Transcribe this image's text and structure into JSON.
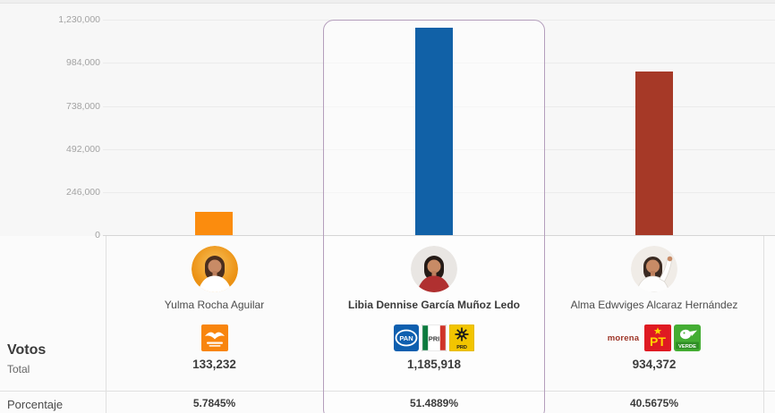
{
  "chart_data": {
    "type": "bar",
    "title": "",
    "categories": [
      "Yulma Rocha Aguilar",
      "Libia Dennise García Muñoz Ledo",
      "Alma Edwviges Alcaraz Hernández"
    ],
    "values": [
      133232,
      1185918,
      934372
    ],
    "bar_colors": [
      "#FB8C0E",
      "#1161A7",
      "#A63927"
    ],
    "y_ticks": [
      "1,230,000",
      "984,000",
      "738,000",
      "492,000",
      "246,000",
      "0"
    ],
    "ylim": [
      0,
      1230000
    ],
    "grid": true,
    "legend": false,
    "highlight_index": 1,
    "highlight_color": "#B49EBC"
  },
  "table": {
    "votes_label": "Votos",
    "votes_sublabel": "Total",
    "percent_label": "Porcentaje"
  },
  "party_labels": {
    "pan": "PAN",
    "pri": "PRI",
    "prd": "PRD",
    "morena": "morena",
    "pt": "PT",
    "verde": "VERDE"
  },
  "candidates": [
    {
      "name": "Yulma Rocha Aguilar",
      "votes": "133,232",
      "percent": "5.7845%",
      "parties": [
        "movimiento-ciudadano"
      ],
      "winner": false
    },
    {
      "name": "Libia Dennise García Muñoz Ledo",
      "votes": "1,185,918",
      "percent": "51.4889%",
      "parties": [
        "pan",
        "pri",
        "prd"
      ],
      "winner": true
    },
    {
      "name": "Alma Edwviges Alcaraz Hernández",
      "votes": "934,372",
      "percent": "40.5675%",
      "parties": [
        "morena",
        "pt",
        "verde"
      ],
      "winner": false
    }
  ]
}
